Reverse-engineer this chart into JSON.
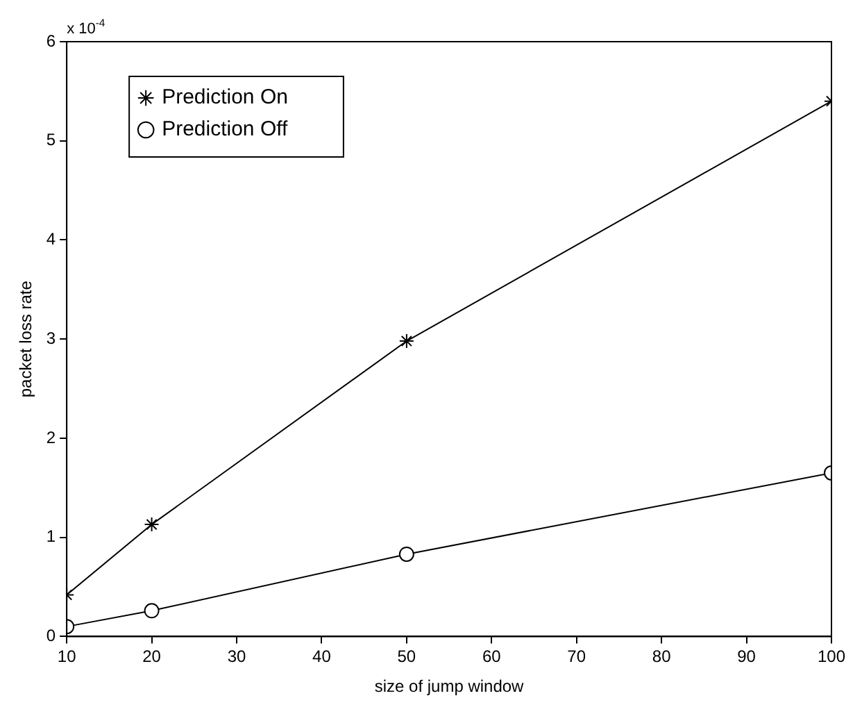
{
  "chart_data": {
    "type": "line",
    "xlabel": "size of jump window",
    "ylabel": "packet loss rate",
    "x": [
      10,
      20,
      50,
      100
    ],
    "series": [
      {
        "name": "Prediction On",
        "color": "#000000",
        "marker": "cross",
        "values": [
          0.42,
          1.13,
          2.98,
          5.4
        ]
      },
      {
        "name": "Prediction Off",
        "color": "#000000",
        "marker": "circle",
        "values": [
          0.1,
          0.26,
          0.83,
          1.65
        ]
      }
    ],
    "xlim": [
      10,
      100
    ],
    "xticks": [
      10,
      20,
      30,
      40,
      50,
      60,
      70,
      80,
      90,
      100
    ],
    "ylim": [
      0,
      6
    ],
    "yticks": [
      0,
      1,
      2,
      3,
      4,
      5,
      6
    ],
    "annotations": [
      "x 10$^{-4}$"
    ],
    "grid": false,
    "legend": "top left",
    "line_style": "solid"
  }
}
